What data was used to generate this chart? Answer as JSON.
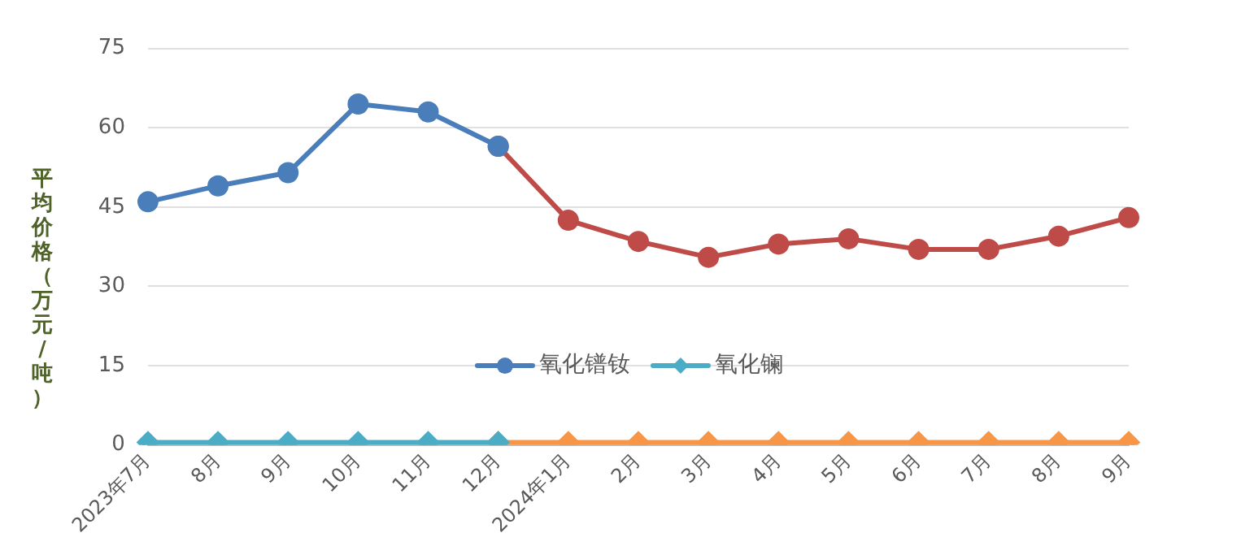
{
  "chart_data": {
    "type": "line",
    "ylabel": "平均价格（万元/吨）",
    "categories": [
      "2023年7月",
      "8月",
      "9月",
      "10月",
      "11月",
      "12月",
      "2024年1月",
      "2月",
      "3月",
      "4月",
      "5月",
      "6月",
      "7月",
      "8月",
      "9月"
    ],
    "series": [
      {
        "name": "氧化镨钕",
        "color": "#4a7ebb",
        "marker": "circle",
        "values": [
          46,
          49,
          51.5,
          64.5,
          63,
          56.5,
          null,
          null,
          null,
          null,
          null,
          null,
          null,
          null,
          null
        ]
      },
      {
        "name": "氧化镧",
        "color": "#4bacc6",
        "marker": "diamond",
        "values": [
          0.5,
          0.5,
          0.5,
          0.5,
          0.5,
          0.5,
          null,
          null,
          null,
          null,
          null,
          null,
          null,
          null,
          null
        ]
      },
      {
        "color": "#be4b48",
        "marker": "circle",
        "values": [
          null,
          null,
          null,
          null,
          null,
          56.5,
          42.5,
          38.5,
          35.5,
          38,
          39,
          37,
          37,
          39.5,
          43
        ]
      },
      {
        "color": "#f79646",
        "marker": "diamond",
        "values": [
          null,
          null,
          null,
          null,
          null,
          0.5,
          0.5,
          0.5,
          0.5,
          0.5,
          0.5,
          0.5,
          0.5,
          0.5,
          0.5
        ]
      }
    ],
    "ylim": [
      0,
      75
    ],
    "yticks": [
      0,
      15,
      30,
      45,
      60,
      75
    ],
    "grid": "y",
    "legend": "bottom"
  }
}
